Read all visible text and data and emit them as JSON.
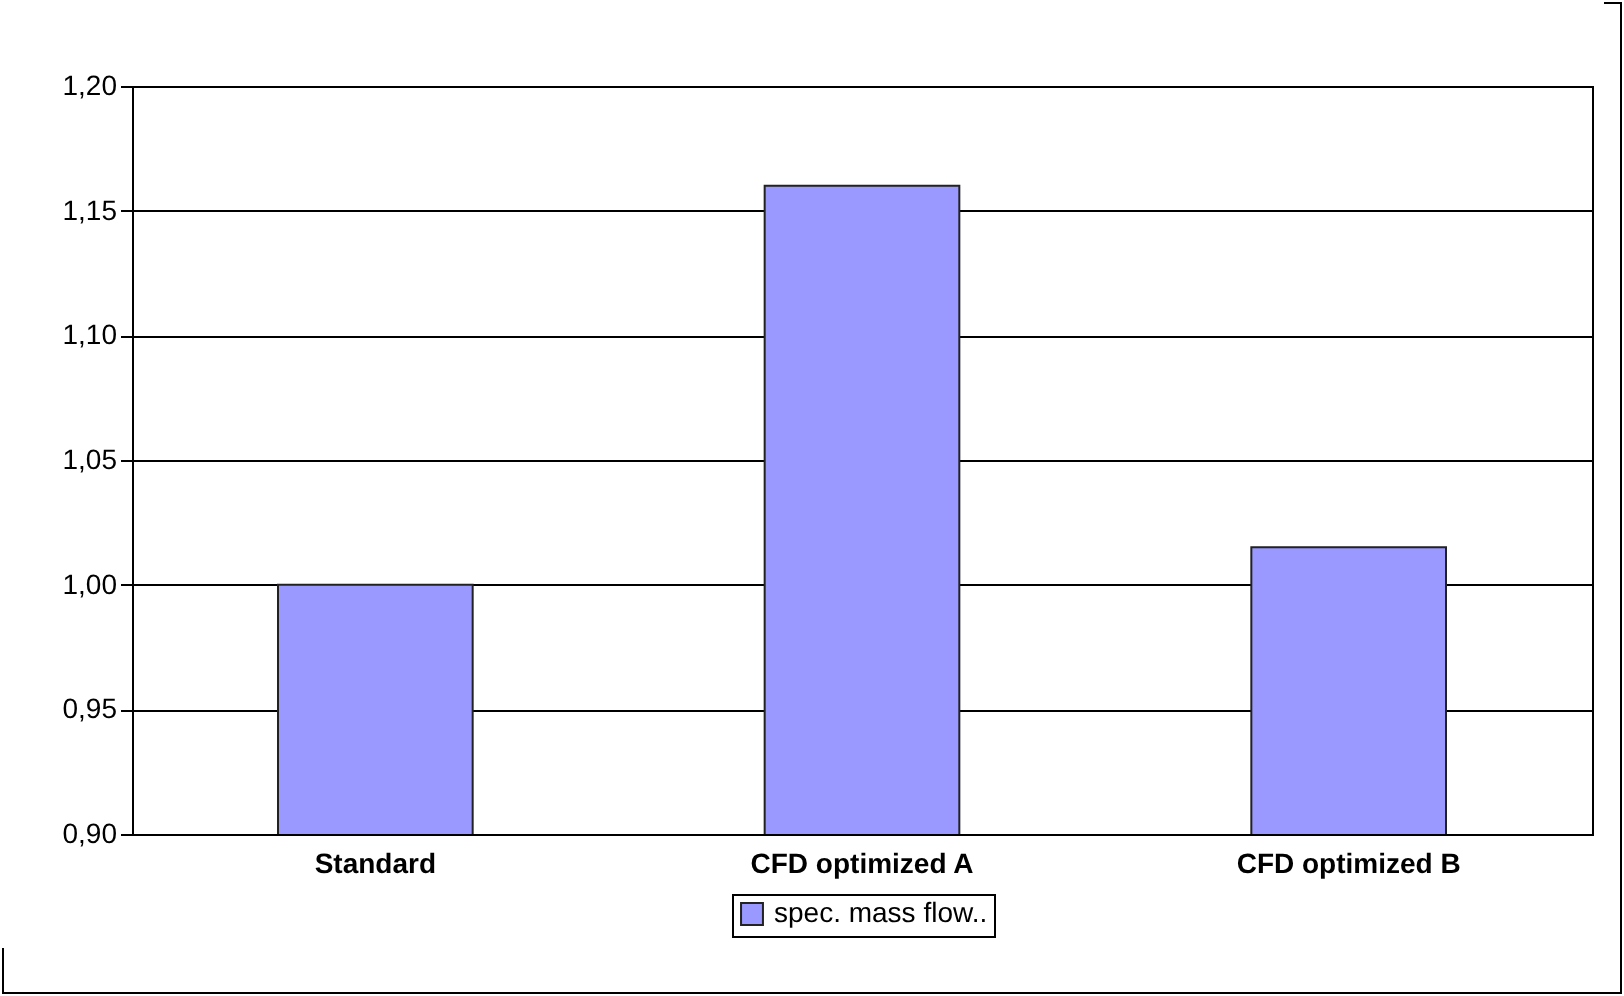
{
  "chart_data": {
    "type": "bar",
    "categories": [
      "Standard",
      "CFD optimized A",
      "CFD optimized B"
    ],
    "series": [
      {
        "name": "spec. mass flow..",
        "color": "#9999ff",
        "values": [
          1.0,
          1.16,
          1.015
        ]
      }
    ],
    "ylim": [
      0.9,
      1.2
    ],
    "yticks": [
      {
        "value": 0.9,
        "label": "0,90"
      },
      {
        "value": 0.95,
        "label": "0,95"
      },
      {
        "value": 1.0,
        "label": "1,00"
      },
      {
        "value": 1.05,
        "label": "1,05"
      },
      {
        "value": 1.1,
        "label": "1,10"
      },
      {
        "value": 1.15,
        "label": "1,15"
      },
      {
        "value": 1.2,
        "label": "1,20"
      }
    ],
    "grid": "y",
    "legend": "bottom"
  }
}
